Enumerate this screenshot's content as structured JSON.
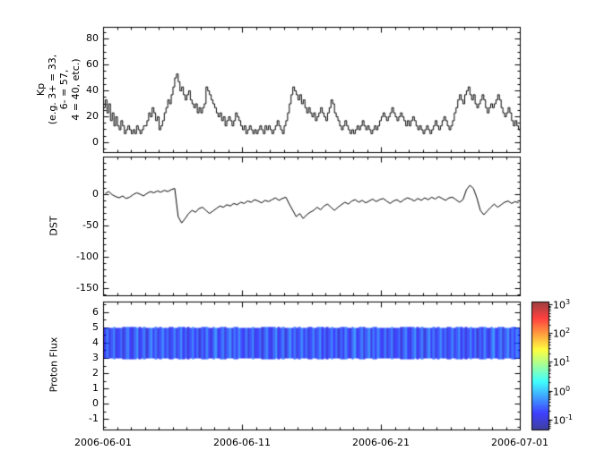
{
  "figure": {
    "background": "#ffffff",
    "line_color": "#000000"
  },
  "chart_data": [
    {
      "type": "line",
      "name": "Kp",
      "draw": "step",
      "ylabel_lines": [
        "Kp",
        "(e.g. 3+ = 33,",
        "6- = 57,",
        "4 = 40, etc.)"
      ],
      "ylim": [
        -7.6,
        89
      ],
      "yticks": [
        0,
        20,
        40,
        60,
        80
      ],
      "y_minor_step": 5,
      "x_days_span": 30,
      "points_per_day": 8,
      "values": [
        27,
        33,
        23,
        30,
        17,
        23,
        13,
        20,
        13,
        10,
        17,
        13,
        7,
        10,
        13,
        10,
        7,
        10,
        7,
        13,
        10,
        7,
        10,
        13,
        13,
        17,
        23,
        20,
        27,
        23,
        17,
        20,
        10,
        13,
        17,
        23,
        27,
        33,
        30,
        37,
        43,
        50,
        53,
        47,
        40,
        43,
        37,
        33,
        37,
        40,
        33,
        30,
        27,
        30,
        23,
        27,
        23,
        27,
        30,
        43,
        40,
        37,
        33,
        30,
        27,
        23,
        20,
        23,
        17,
        20,
        13,
        17,
        20,
        17,
        13,
        17,
        23,
        20,
        17,
        13,
        10,
        13,
        7,
        10,
        13,
        10,
        7,
        10,
        7,
        10,
        13,
        10,
        7,
        13,
        10,
        13,
        10,
        7,
        10,
        13,
        17,
        13,
        10,
        7,
        13,
        17,
        23,
        30,
        37,
        43,
        40,
        37,
        33,
        37,
        30,
        33,
        27,
        23,
        27,
        23,
        20,
        23,
        17,
        20,
        23,
        27,
        23,
        20,
        17,
        23,
        27,
        33,
        30,
        23,
        20,
        17,
        13,
        10,
        13,
        17,
        13,
        10,
        7,
        10,
        7,
        10,
        13,
        10,
        13,
        17,
        13,
        10,
        13,
        10,
        7,
        10,
        13,
        10,
        13,
        17,
        20,
        23,
        20,
        17,
        20,
        23,
        27,
        23,
        20,
        17,
        20,
        23,
        20,
        17,
        13,
        17,
        13,
        17,
        20,
        17,
        13,
        10,
        13,
        10,
        7,
        10,
        13,
        10,
        7,
        10,
        13,
        17,
        13,
        10,
        13,
        17,
        20,
        17,
        13,
        10,
        13,
        17,
        23,
        27,
        33,
        37,
        33,
        30,
        37,
        40,
        43,
        37,
        33,
        37,
        30,
        27,
        30,
        33,
        37,
        33,
        27,
        23,
        27,
        30,
        27,
        30,
        33,
        37,
        33,
        27,
        23,
        20,
        23,
        27,
        23,
        17,
        13,
        17,
        13,
        10
      ]
    },
    {
      "type": "line",
      "name": "DST",
      "draw": "line",
      "ylabel": "DST",
      "ylim": [
        -161,
        60
      ],
      "yticks": [
        0,
        -50,
        -100,
        -150
      ],
      "y_minor_step": 10,
      "x_days_span": 30,
      "points_per_day": 4,
      "values": [
        2,
        5,
        0,
        -3,
        -5,
        -2,
        -6,
        -4,
        0,
        3,
        1,
        -2,
        2,
        5,
        3,
        6,
        4,
        7,
        5,
        8,
        10,
        -35,
        -45,
        -38,
        -30,
        -25,
        -28,
        -22,
        -20,
        -25,
        -30,
        -26,
        -22,
        -18,
        -20,
        -16,
        -18,
        -14,
        -16,
        -12,
        -14,
        -10,
        -12,
        -8,
        -10,
        -13,
        -9,
        -11,
        -8,
        -5,
        -9,
        -6,
        -4,
        -15,
        -25,
        -35,
        -30,
        -38,
        -32,
        -28,
        -25,
        -20,
        -24,
        -18,
        -15,
        -20,
        -25,
        -20,
        -16,
        -12,
        -15,
        -10,
        -8,
        -12,
        -9,
        -13,
        -10,
        -7,
        -11,
        -8,
        -6,
        -10,
        -14,
        -10,
        -8,
        -12,
        -8,
        -5,
        -7,
        -10,
        -6,
        -9,
        -5,
        -8,
        -4,
        -7,
        -3,
        -6,
        -9,
        -5,
        -4,
        -8,
        -12,
        -8,
        8,
        15,
        10,
        -5,
        -25,
        -32,
        -26,
        -20,
        -15,
        -20,
        -16,
        -12,
        -10,
        -14,
        -11,
        -13
      ]
    },
    {
      "type": "spectrogram",
      "name": "Proton Flux",
      "ylabel": "Proton Flux",
      "ylim": [
        -1.7,
        6.7
      ],
      "yticks": [
        -1,
        0,
        1,
        2,
        3,
        4,
        5,
        6
      ],
      "y_minor_step": 0.5,
      "band_y": [
        3,
        5
      ],
      "x_days_span": 30,
      "value_range_exponents": [
        -1,
        0.5
      ],
      "column_intensities": [
        0.12,
        0.3,
        0.08,
        0.22,
        0.35,
        0.1,
        0.18,
        0.28,
        0.07,
        0.25,
        0.33,
        0.15,
        0.09,
        0.27,
        0.38,
        0.11,
        0.2,
        0.31,
        0.06,
        0.24,
        0.36,
        0.14,
        0.29,
        0.08,
        0.21,
        0.34,
        0.12,
        0.26,
        0.07,
        0.19,
        0.32,
        0.1,
        0.23,
        0.37,
        0.13,
        0.28,
        0.09,
        0.22,
        0.35,
        0.16,
        0.3,
        0.06,
        0.25,
        0.11,
        0.33,
        0.18,
        0.08,
        0.27,
        0.38,
        0.12,
        0.21,
        0.31,
        0.07,
        0.24,
        0.36,
        0.1,
        0.29,
        0.15,
        0.34,
        0.2
      ]
    }
  ],
  "xaxis": {
    "tick_labels": [
      "2006-06-01",
      "2006-06-11",
      "2006-06-21",
      "2006-07-01"
    ],
    "tick_days": [
      0,
      10,
      20,
      30
    ],
    "minor_day_step": 1,
    "span_days": 30
  },
  "colorbar": {
    "scale": "log",
    "tick_exponents": [
      3,
      2,
      1,
      0,
      -1
    ],
    "range_exponents": [
      -1.35,
      3.1
    ],
    "colormap": "jet"
  }
}
